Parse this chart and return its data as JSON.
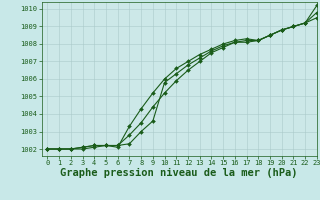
{
  "title": "Graphe pression niveau de la mer (hPa)",
  "bg_color": "#c8e8e8",
  "plot_bg_color": "#cce8e8",
  "line_color": "#1a5c1a",
  "grid_color": "#aacaca",
  "xlim": [
    -0.5,
    23
  ],
  "ylim": [
    1001.6,
    1010.4
  ],
  "yticks": [
    1002,
    1003,
    1004,
    1005,
    1006,
    1007,
    1008,
    1009,
    1010
  ],
  "xticks": [
    0,
    1,
    2,
    3,
    4,
    5,
    6,
    7,
    8,
    9,
    10,
    11,
    12,
    13,
    14,
    15,
    16,
    17,
    18,
    19,
    20,
    21,
    22,
    23
  ],
  "series": [
    [
      1002.0,
      1002.0,
      1002.0,
      1002.1,
      1002.2,
      1002.2,
      1002.2,
      1002.8,
      1003.5,
      1004.4,
      1005.2,
      1005.9,
      1006.5,
      1007.0,
      1007.5,
      1007.8,
      1008.1,
      1008.2,
      1008.2,
      1008.5,
      1008.8,
      1009.0,
      1009.2,
      1009.8
    ],
    [
      1002.0,
      1002.0,
      1002.0,
      1002.0,
      1002.1,
      1002.2,
      1002.1,
      1003.3,
      1004.3,
      1005.2,
      1006.0,
      1006.6,
      1007.0,
      1007.4,
      1007.7,
      1008.0,
      1008.2,
      1008.3,
      1008.2,
      1008.5,
      1008.8,
      1009.0,
      1009.2,
      1010.2
    ],
    [
      1002.0,
      1002.0,
      1002.0,
      1002.1,
      1002.2,
      1002.2,
      1002.2,
      1002.3,
      1003.0,
      1003.6,
      1005.8,
      1006.3,
      1006.8,
      1007.2,
      1007.6,
      1007.9,
      1008.1,
      1008.1,
      1008.2,
      1008.5,
      1008.8,
      1009.0,
      1009.2,
      1009.5
    ]
  ],
  "marker": "D",
  "marker_size": 2.0,
  "line_width": 0.8,
  "title_fontsize": 7.5,
  "tick_fontsize": 5.0,
  "tick_color": "#1a5c1a",
  "axis_color": "#1a5c1a"
}
